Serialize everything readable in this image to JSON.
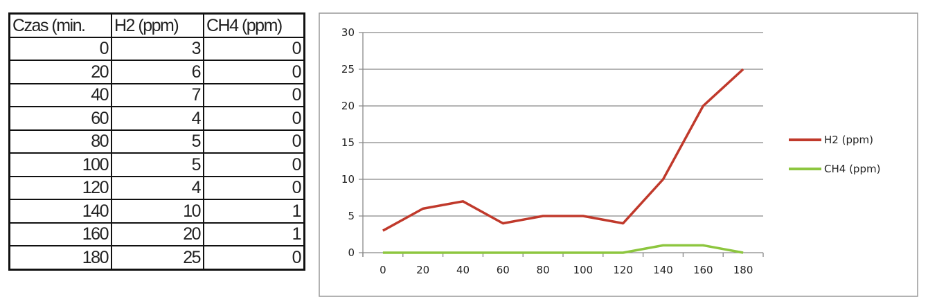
{
  "table": {
    "headers": [
      "Czas (min.",
      "H2 (ppm)",
      "CH4 (ppm)"
    ],
    "rows": [
      [
        "0",
        "3",
        "0"
      ],
      [
        "20",
        "6",
        "0"
      ],
      [
        "40",
        "7",
        "0"
      ],
      [
        "60",
        "4",
        "0"
      ],
      [
        "80",
        "5",
        "0"
      ],
      [
        "100",
        "5",
        "0"
      ],
      [
        "120",
        "4",
        "0"
      ],
      [
        "140",
        "10",
        "1"
      ],
      [
        "160",
        "20",
        "1"
      ],
      [
        "180",
        "25",
        "0"
      ]
    ]
  },
  "chart_data": {
    "type": "line",
    "categories": [
      "0",
      "20",
      "40",
      "60",
      "80",
      "100",
      "120",
      "140",
      "160",
      "180"
    ],
    "series": [
      {
        "name": "H2 (ppm)",
        "values": [
          3,
          6,
          7,
          4,
          5,
          5,
          4,
          10,
          20,
          25
        ],
        "color": "#c0392b"
      },
      {
        "name": "CH4 (ppm)",
        "values": [
          0,
          0,
          0,
          0,
          0,
          0,
          0,
          1,
          1,
          0
        ],
        "color": "#8dc63f"
      }
    ],
    "yticks": [
      "0",
      "5",
      "10",
      "15",
      "20",
      "25",
      "30"
    ],
    "ylim": [
      0,
      30
    ],
    "grid": true,
    "legend": "right",
    "title": "",
    "xlabel": "",
    "ylabel": ""
  }
}
